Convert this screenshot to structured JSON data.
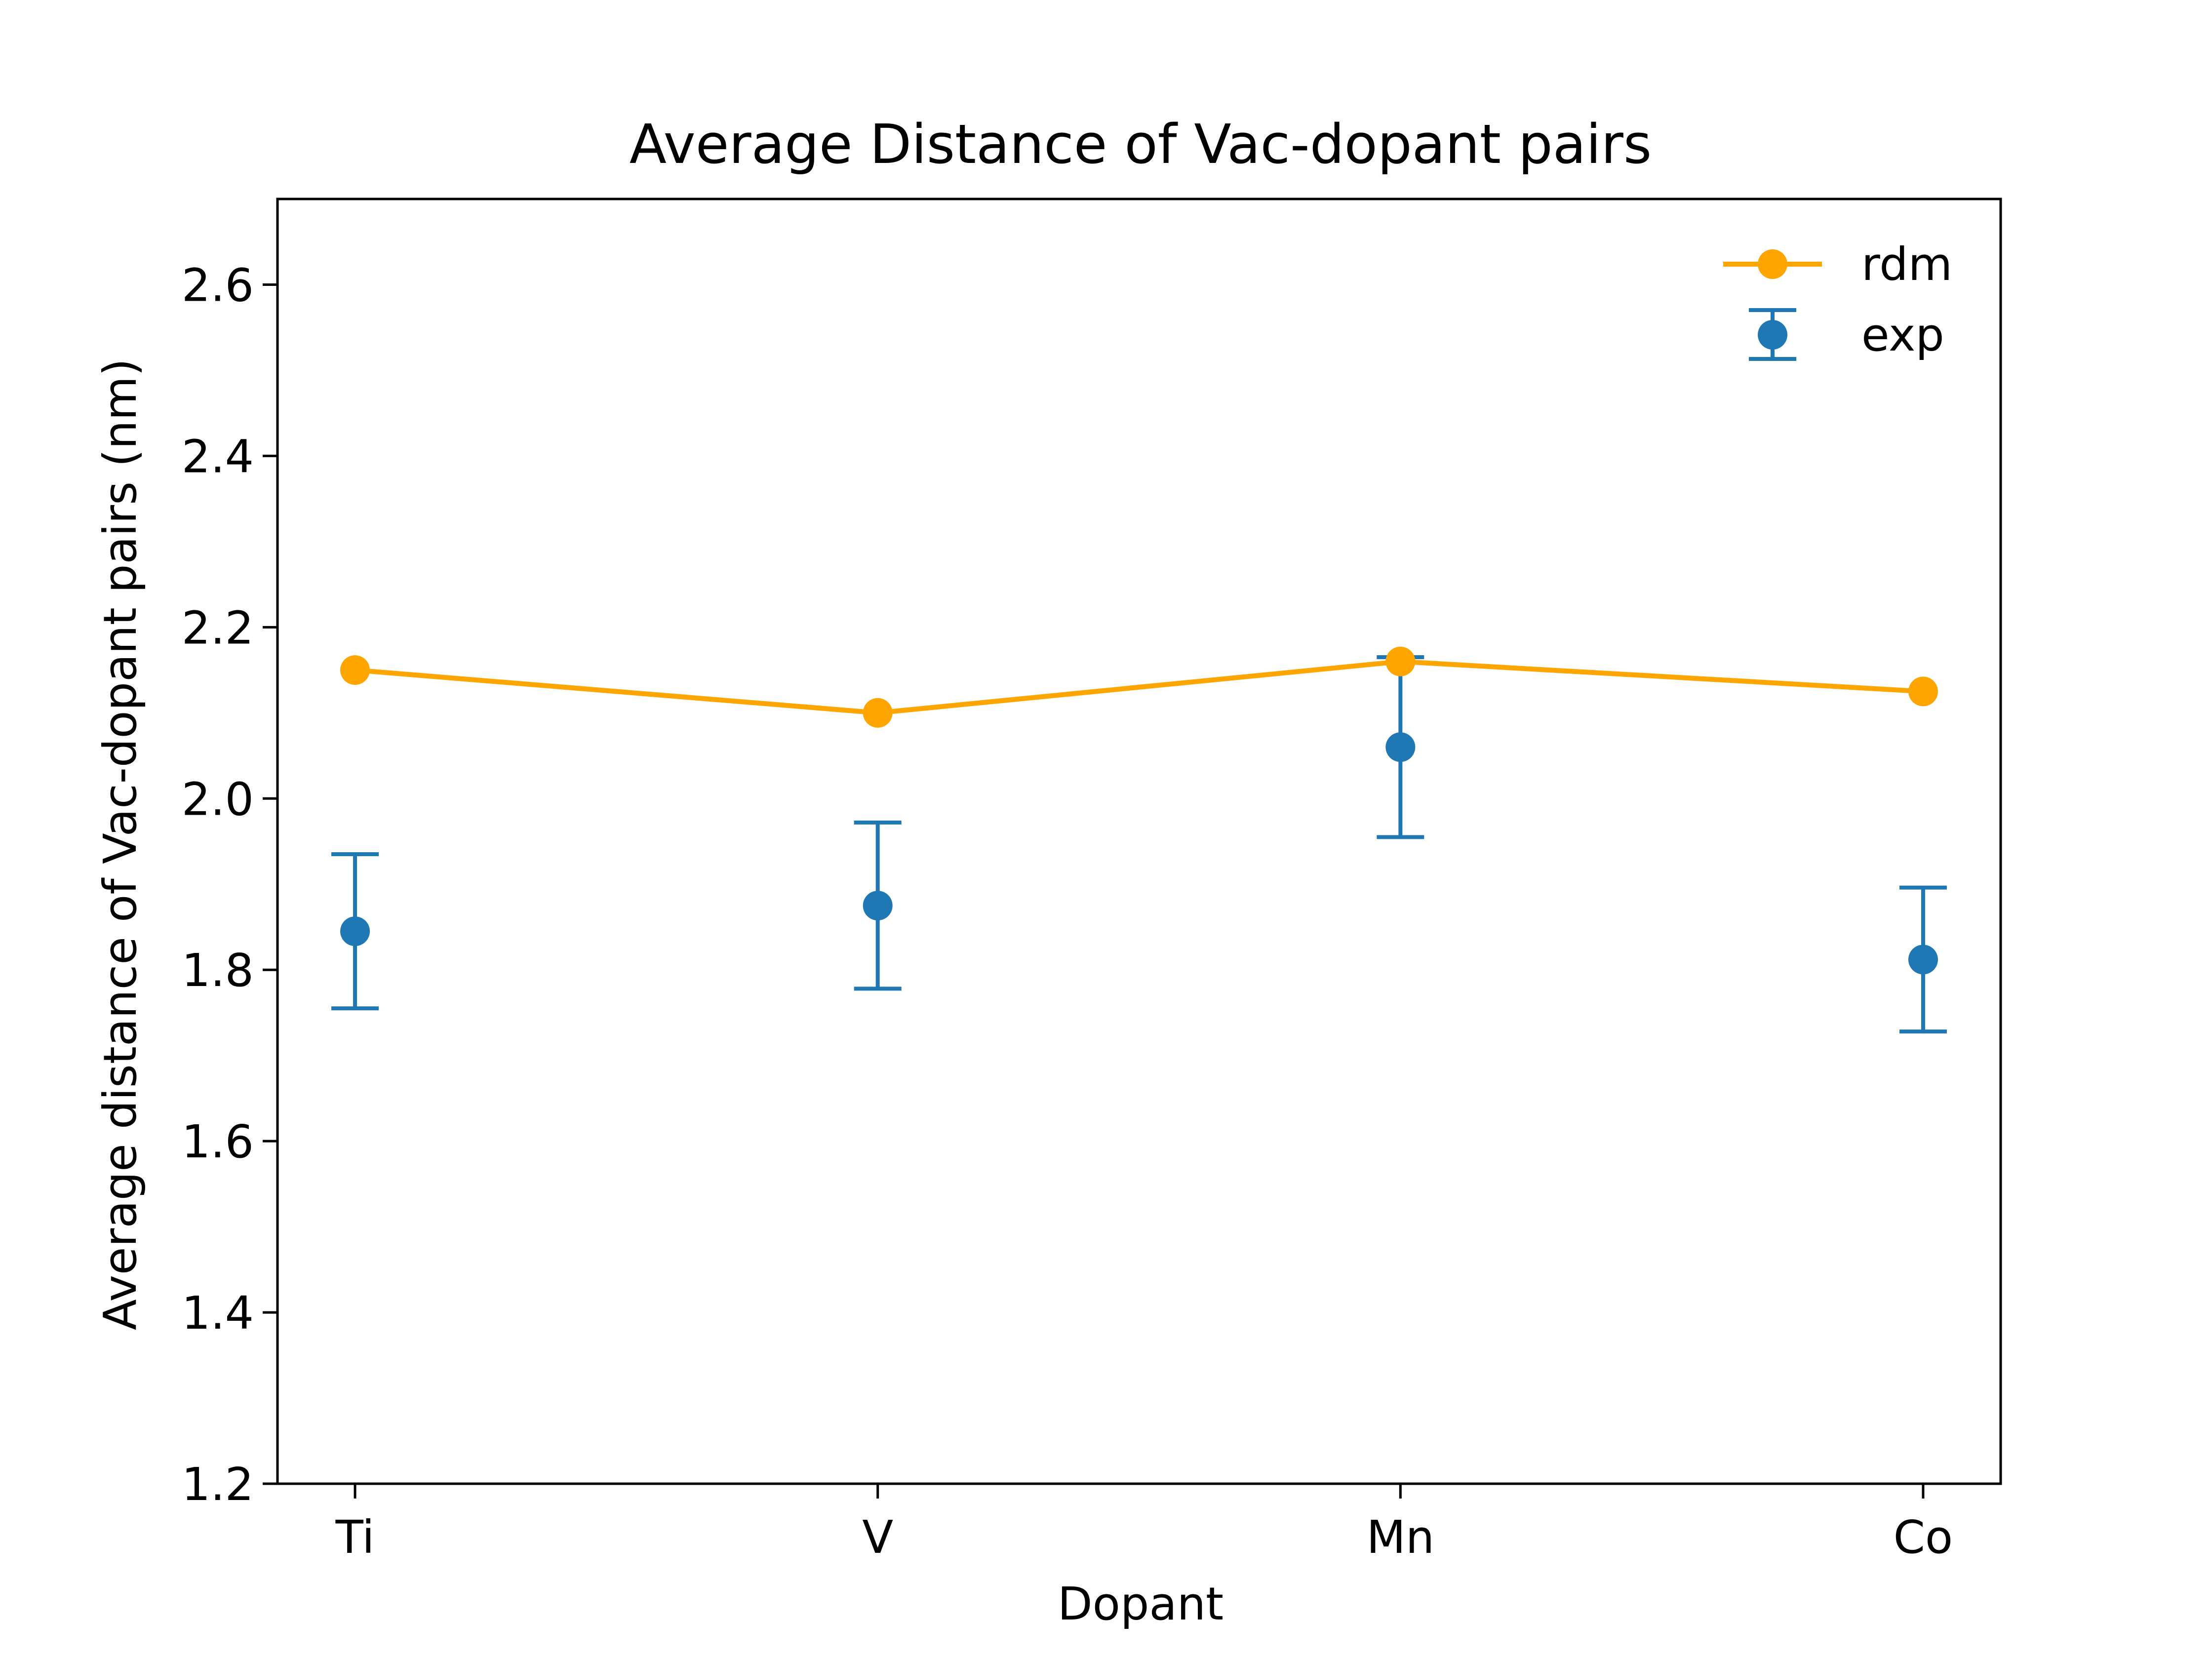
{
  "chart_data": {
    "type": "line",
    "title": "Average Distance of Vac-dopant pairs",
    "xlabel": "Dopant",
    "ylabel": "Average distance of Vac-dopant pairs (nm)",
    "categories": [
      "Ti",
      "V",
      "Mn",
      "Co"
    ],
    "ylim": [
      1.2,
      2.7
    ],
    "yticks": [
      1.2,
      1.4,
      1.6,
      1.8,
      2.0,
      2.2,
      2.4,
      2.6
    ],
    "ytick_labels": [
      "1.2",
      "1.4",
      "1.6",
      "1.8",
      "2.0",
      "2.2",
      "2.4",
      "2.6"
    ],
    "grid": false,
    "legend_position": "top-right",
    "series": [
      {
        "name": "rdm",
        "kind": "line-marker",
        "color": "#ffa500",
        "values": [
          2.15,
          2.1,
          2.16,
          2.125
        ]
      },
      {
        "name": "exp",
        "kind": "errorbar",
        "color": "#1f77b4",
        "values": [
          1.845,
          1.875,
          2.06,
          1.812
        ],
        "errors": [
          0.09,
          0.097,
          0.105,
          0.084
        ]
      }
    ]
  }
}
